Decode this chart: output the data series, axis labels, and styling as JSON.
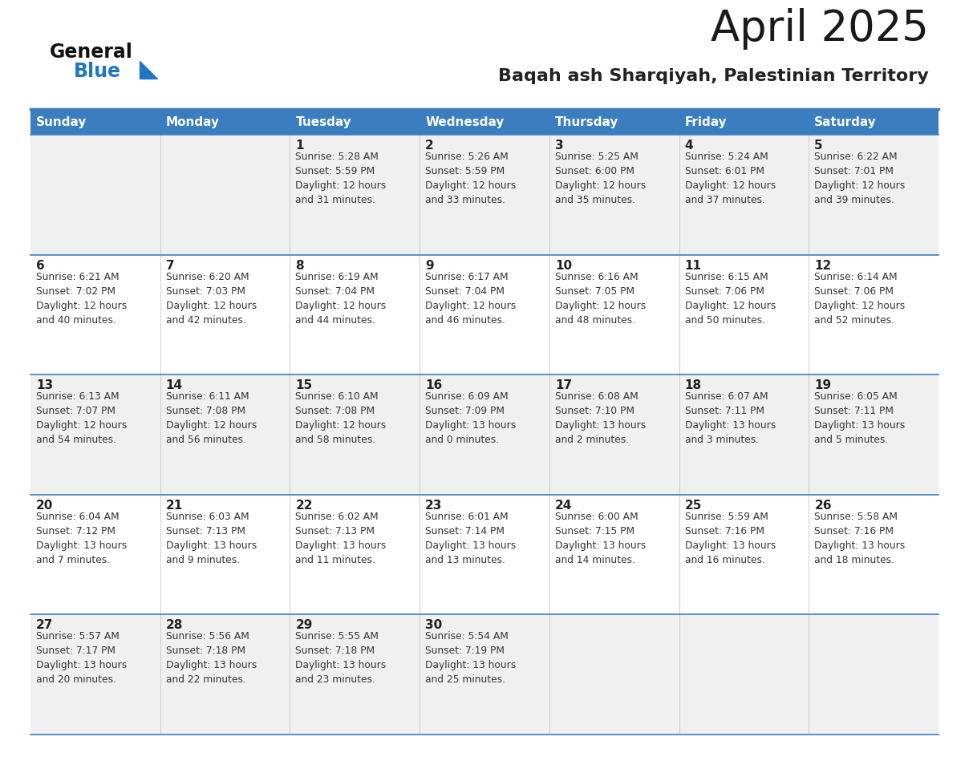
{
  "title": "April 2025",
  "subtitle": "Baqah ash Sharqiyah, Palestinian Territory",
  "days_of_week": [
    "Sunday",
    "Monday",
    "Tuesday",
    "Wednesday",
    "Thursday",
    "Friday",
    "Saturday"
  ],
  "header_bg": "#3a7ebf",
  "header_text": "#ffffff",
  "row_bg_odd": "#f0f0f0",
  "row_bg_even": "#ffffff",
  "cell_border_color": "#3a7ebf",
  "day_number_color": "#222222",
  "cell_text_color": "#333333",
  "title_color": "#1a1a1a",
  "subtitle_color": "#222222",
  "logo_general_color": "#111111",
  "logo_blue_color": "#2176c0",
  "weeks": [
    {
      "days": [
        {
          "day": null,
          "info": null
        },
        {
          "day": null,
          "info": null
        },
        {
          "day": 1,
          "info": "Sunrise: 5:28 AM\nSunset: 5:59 PM\nDaylight: 12 hours\nand 31 minutes."
        },
        {
          "day": 2,
          "info": "Sunrise: 5:26 AM\nSunset: 5:59 PM\nDaylight: 12 hours\nand 33 minutes."
        },
        {
          "day": 3,
          "info": "Sunrise: 5:25 AM\nSunset: 6:00 PM\nDaylight: 12 hours\nand 35 minutes."
        },
        {
          "day": 4,
          "info": "Sunrise: 5:24 AM\nSunset: 6:01 PM\nDaylight: 12 hours\nand 37 minutes."
        },
        {
          "day": 5,
          "info": "Sunrise: 6:22 AM\nSunset: 7:01 PM\nDaylight: 12 hours\nand 39 minutes."
        }
      ]
    },
    {
      "days": [
        {
          "day": 6,
          "info": "Sunrise: 6:21 AM\nSunset: 7:02 PM\nDaylight: 12 hours\nand 40 minutes."
        },
        {
          "day": 7,
          "info": "Sunrise: 6:20 AM\nSunset: 7:03 PM\nDaylight: 12 hours\nand 42 minutes."
        },
        {
          "day": 8,
          "info": "Sunrise: 6:19 AM\nSunset: 7:04 PM\nDaylight: 12 hours\nand 44 minutes."
        },
        {
          "day": 9,
          "info": "Sunrise: 6:17 AM\nSunset: 7:04 PM\nDaylight: 12 hours\nand 46 minutes."
        },
        {
          "day": 10,
          "info": "Sunrise: 6:16 AM\nSunset: 7:05 PM\nDaylight: 12 hours\nand 48 minutes."
        },
        {
          "day": 11,
          "info": "Sunrise: 6:15 AM\nSunset: 7:06 PM\nDaylight: 12 hours\nand 50 minutes."
        },
        {
          "day": 12,
          "info": "Sunrise: 6:14 AM\nSunset: 7:06 PM\nDaylight: 12 hours\nand 52 minutes."
        }
      ]
    },
    {
      "days": [
        {
          "day": 13,
          "info": "Sunrise: 6:13 AM\nSunset: 7:07 PM\nDaylight: 12 hours\nand 54 minutes."
        },
        {
          "day": 14,
          "info": "Sunrise: 6:11 AM\nSunset: 7:08 PM\nDaylight: 12 hours\nand 56 minutes."
        },
        {
          "day": 15,
          "info": "Sunrise: 6:10 AM\nSunset: 7:08 PM\nDaylight: 12 hours\nand 58 minutes."
        },
        {
          "day": 16,
          "info": "Sunrise: 6:09 AM\nSunset: 7:09 PM\nDaylight: 13 hours\nand 0 minutes."
        },
        {
          "day": 17,
          "info": "Sunrise: 6:08 AM\nSunset: 7:10 PM\nDaylight: 13 hours\nand 2 minutes."
        },
        {
          "day": 18,
          "info": "Sunrise: 6:07 AM\nSunset: 7:11 PM\nDaylight: 13 hours\nand 3 minutes."
        },
        {
          "day": 19,
          "info": "Sunrise: 6:05 AM\nSunset: 7:11 PM\nDaylight: 13 hours\nand 5 minutes."
        }
      ]
    },
    {
      "days": [
        {
          "day": 20,
          "info": "Sunrise: 6:04 AM\nSunset: 7:12 PM\nDaylight: 13 hours\nand 7 minutes."
        },
        {
          "day": 21,
          "info": "Sunrise: 6:03 AM\nSunset: 7:13 PM\nDaylight: 13 hours\nand 9 minutes."
        },
        {
          "day": 22,
          "info": "Sunrise: 6:02 AM\nSunset: 7:13 PM\nDaylight: 13 hours\nand 11 minutes."
        },
        {
          "day": 23,
          "info": "Sunrise: 6:01 AM\nSunset: 7:14 PM\nDaylight: 13 hours\nand 13 minutes."
        },
        {
          "day": 24,
          "info": "Sunrise: 6:00 AM\nSunset: 7:15 PM\nDaylight: 13 hours\nand 14 minutes."
        },
        {
          "day": 25,
          "info": "Sunrise: 5:59 AM\nSunset: 7:16 PM\nDaylight: 13 hours\nand 16 minutes."
        },
        {
          "day": 26,
          "info": "Sunrise: 5:58 AM\nSunset: 7:16 PM\nDaylight: 13 hours\nand 18 minutes."
        }
      ]
    },
    {
      "days": [
        {
          "day": 27,
          "info": "Sunrise: 5:57 AM\nSunset: 7:17 PM\nDaylight: 13 hours\nand 20 minutes."
        },
        {
          "day": 28,
          "info": "Sunrise: 5:56 AM\nSunset: 7:18 PM\nDaylight: 13 hours\nand 22 minutes."
        },
        {
          "day": 29,
          "info": "Sunrise: 5:55 AM\nSunset: 7:18 PM\nDaylight: 13 hours\nand 23 minutes."
        },
        {
          "day": 30,
          "info": "Sunrise: 5:54 AM\nSunset: 7:19 PM\nDaylight: 13 hours\nand 25 minutes."
        },
        {
          "day": null,
          "info": null
        },
        {
          "day": null,
          "info": null
        },
        {
          "day": null,
          "info": null
        }
      ]
    }
  ]
}
